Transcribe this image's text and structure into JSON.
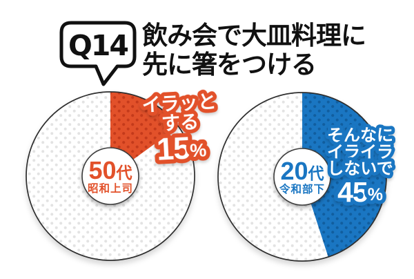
{
  "header": {
    "badge": "Q14",
    "title_line1": "飲み会で大皿料理に",
    "title_line2": "先に箸をつける"
  },
  "colors": {
    "red": "#e2512a",
    "red_dot": "#c43a1b",
    "blue": "#1a76c2",
    "blue_dot": "#115e9f",
    "dot_gray": "#e3e3e3",
    "rim": "#2e2e2e",
    "text": "#111111",
    "white": "#ffffff"
  },
  "chart_data": [
    {
      "type": "pie",
      "title": "50代 昭和上司",
      "direction": "clockwise",
      "start_angle_deg": 0,
      "center": {
        "num": "50",
        "suffix": "代",
        "sub": "昭和上司"
      },
      "slices": [
        {
          "label": "イラッとする",
          "value": 15,
          "color": "#e2512a",
          "pattern": "red-dots"
        },
        {
          "label": "",
          "value": 85,
          "color": "#ffffff",
          "pattern": "gray-dots"
        }
      ],
      "callout": {
        "line1": "イラッと",
        "line2": "する",
        "value": "15",
        "unit": "%"
      }
    },
    {
      "type": "pie",
      "title": "20代 令和部下",
      "direction": "clockwise",
      "start_angle_deg": 0,
      "center": {
        "num": "20",
        "suffix": "代",
        "sub": "令和部下"
      },
      "slices": [
        {
          "label": "そんなにイライラしないで",
          "value": 45,
          "color": "#1a76c2",
          "pattern": "blue-dots"
        },
        {
          "label": "",
          "value": 55,
          "color": "#ffffff",
          "pattern": "gray-dots"
        }
      ],
      "callout": {
        "line1": "そんなに",
        "line2": "イライラ",
        "line3": "しないで",
        "value": "45",
        "unit": "%"
      }
    }
  ]
}
